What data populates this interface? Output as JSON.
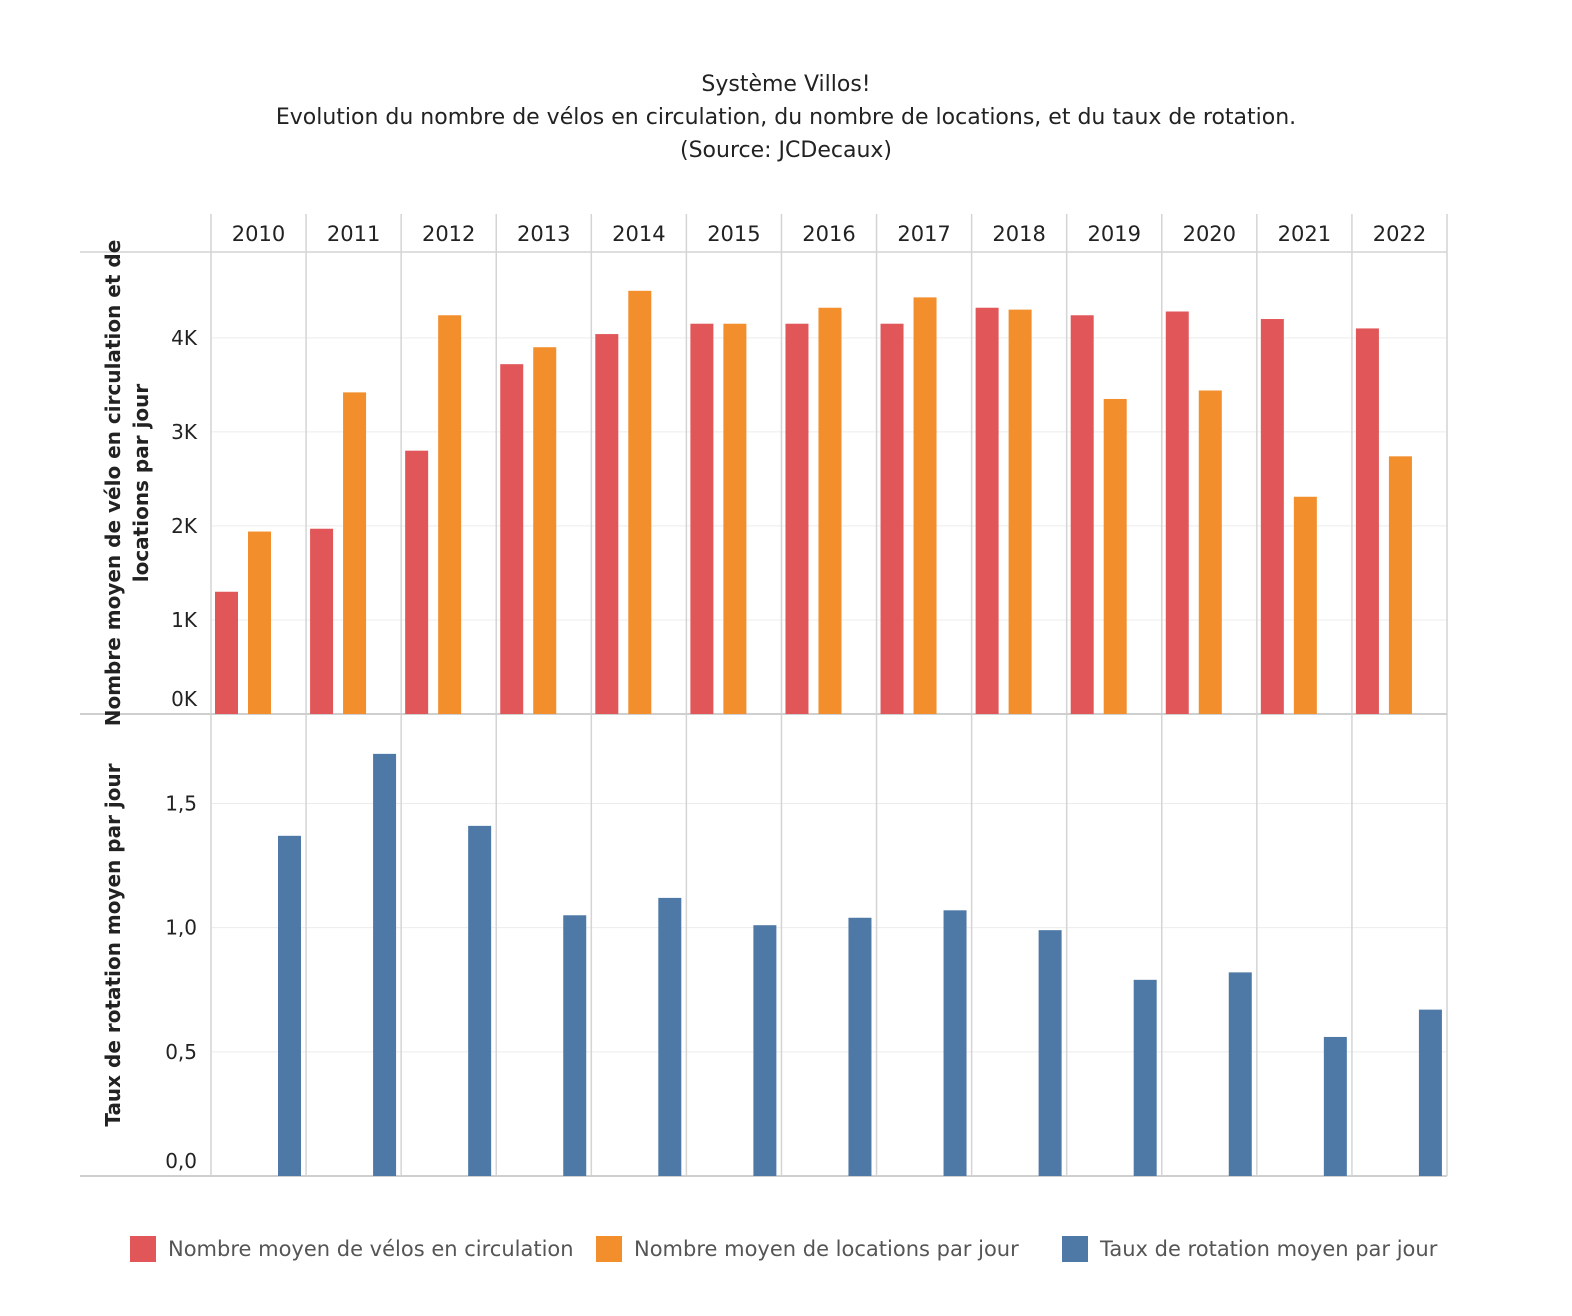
{
  "title": {
    "line1": "Système Villos!",
    "line2": "Evolution du nombre de vélos en circulation, du nombre de locations, et du taux de rotation.",
    "line3": "(Source: JCDecaux)"
  },
  "colors": {
    "velos": "#e15759",
    "locations": "#f28e2b",
    "rotation": "#4e79a7"
  },
  "legend": [
    {
      "label": "Nombre moyen de vélos en circulation",
      "color": "#e15759"
    },
    {
      "label": "Nombre moyen de locations par jour",
      "color": "#f28e2b"
    },
    {
      "label": "Taux de rotation moyen par jour",
      "color": "#4e79a7"
    }
  ],
  "chart_data": {
    "type": "bar",
    "categories": [
      "2010",
      "2011",
      "2012",
      "2013",
      "2014",
      "2015",
      "2016",
      "2017",
      "2018",
      "2019",
      "2020",
      "2021",
      "2022"
    ],
    "panels": [
      {
        "ylabel_lines": [
          "Nombre moyen de vélo en circulation et de",
          "locations par jour"
        ],
        "ylim": [
          0,
          4700
        ],
        "ticks": [
          0,
          1000,
          2000,
          3000,
          4000
        ],
        "tick_labels": [
          "0K",
          "1K",
          "2K",
          "3K",
          "4K"
        ],
        "series": [
          {
            "name": "Nombre moyen de vélos en circulation",
            "color": "#e15759",
            "values": [
              1300,
              1970,
              2800,
              3720,
              4040,
              4150,
              4150,
              4150,
              4320,
              4240,
              4280,
              4200,
              4100
            ]
          },
          {
            "name": "Nombre moyen de locations par jour",
            "color": "#f28e2b",
            "values": [
              1940,
              3420,
              4240,
              3900,
              4500,
              4150,
              4320,
              4430,
              4300,
              3350,
              3440,
              2310,
              2740
            ]
          }
        ]
      },
      {
        "ylabel_lines": [
          "Taux de rotation moyen par jour"
        ],
        "ylim": [
          0,
          1.78
        ],
        "ticks": [
          0,
          0.5,
          1.0,
          1.5
        ],
        "tick_labels": [
          "0,0",
          "0,5",
          "1,0",
          "1,5"
        ],
        "series": [
          {
            "name": "Taux de rotation moyen par jour",
            "color": "#4e79a7",
            "values": [
              1.37,
              1.7,
              1.41,
              1.05,
              1.12,
              1.01,
              1.04,
              1.07,
              0.99,
              0.79,
              0.82,
              0.56,
              0.67
            ]
          }
        ]
      }
    ],
    "grid": true,
    "legend_position": "bottom"
  }
}
